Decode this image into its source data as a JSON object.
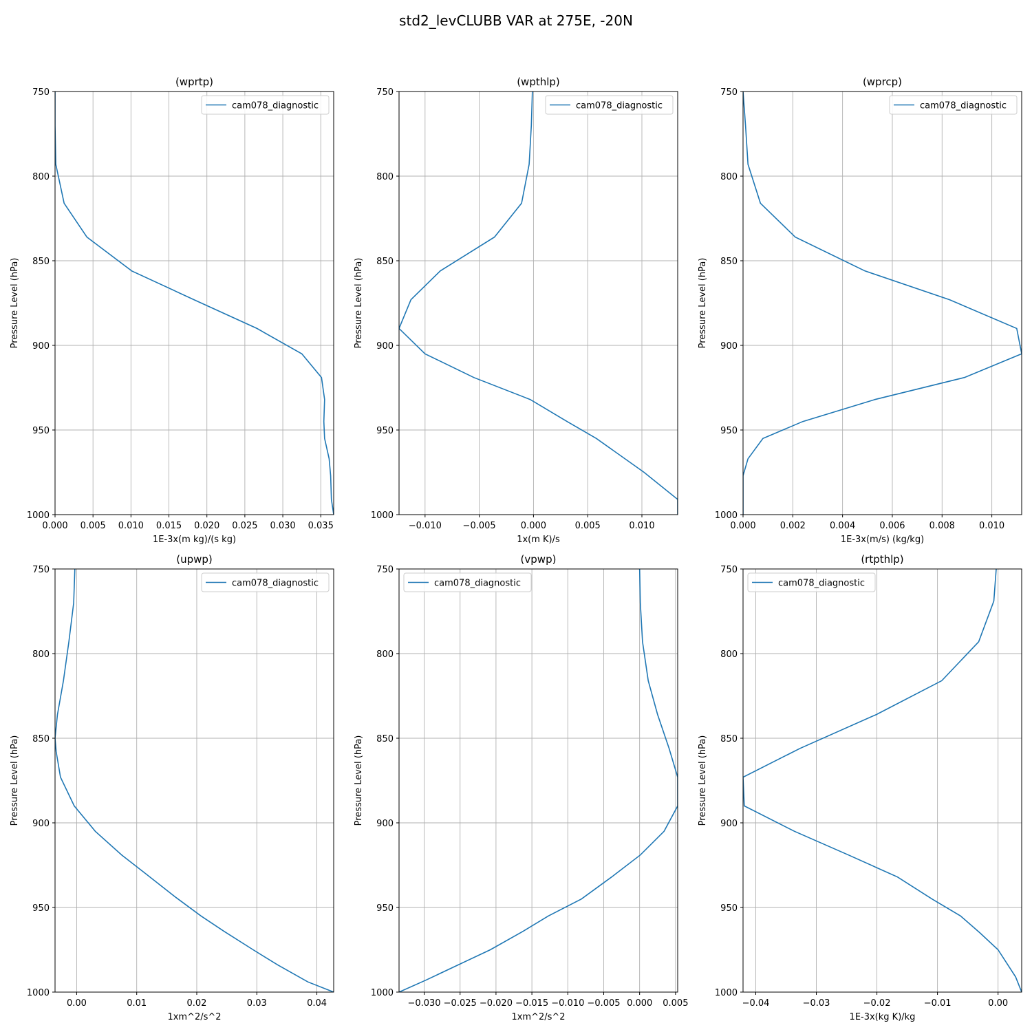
{
  "figure": {
    "title": "std2_levCLUBB VAR at 275E, -20N"
  },
  "chart_data": [
    {
      "type": "line",
      "title": "(wprtp)",
      "xlabel": "1E-3x(m kg)/(s kg)",
      "ylabel": "Pressure Level (hPa)",
      "xlim": [
        0,
        0.0367
      ],
      "ylim": [
        1000,
        750
      ],
      "y_inverted": true,
      "xticks": [
        0,
        0.005,
        0.01,
        0.015,
        0.02,
        0.025,
        0.03,
        0.035
      ],
      "xtick_labels": [
        "0.000",
        "0.005",
        "0.010",
        "0.015",
        "0.020",
        "0.025",
        "0.030",
        "0.035"
      ],
      "yticks": [
        750,
        800,
        850,
        900,
        950,
        1000
      ],
      "ytick_labels": [
        "750",
        "800",
        "850",
        "900",
        "950",
        "1000"
      ],
      "grid": true,
      "legend_position": "upper right",
      "series": [
        {
          "name": "cam078_diagnostic",
          "color": "#1f77b4",
          "x": [
            0.0,
            0.0,
            0.0001,
            0.0012,
            0.0042,
            0.0101,
            0.0183,
            0.0266,
            0.0325,
            0.0351,
            0.0355,
            0.0354,
            0.0355,
            0.0361,
            0.0363,
            0.0364,
            0.0367
          ],
          "y": [
            750,
            770,
            793,
            816,
            836,
            856,
            873,
            890,
            905,
            919,
            932,
            945,
            955,
            967,
            977,
            991,
            1000
          ]
        }
      ]
    },
    {
      "type": "line",
      "title": "(wpthlp)",
      "xlabel": "1x(m K)/s",
      "ylabel": "Pressure Level (hPa)",
      "xlim": [
        -0.0124,
        0.0133
      ],
      "ylim": [
        1000,
        750
      ],
      "y_inverted": true,
      "xticks": [
        -0.01,
        -0.005,
        0,
        0.005,
        0.01
      ],
      "xtick_labels": [
        "−0.010",
        "−0.005",
        "0.000",
        "0.005",
        "0.010"
      ],
      "yticks": [
        750,
        800,
        850,
        900,
        950,
        1000
      ],
      "ytick_labels": [
        "750",
        "800",
        "850",
        "900",
        "950",
        "1000"
      ],
      "grid": true,
      "legend_position": "upper right",
      "series": [
        {
          "name": "cam078_diagnostic",
          "color": "#1f77b4",
          "x": [
            -0.0001,
            -0.0002,
            -0.0004,
            -0.0011,
            -0.0036,
            -0.0086,
            -0.0113,
            -0.0124,
            -0.01,
            -0.0055,
            -0.0003,
            0.0031,
            0.0058,
            0.0102,
            0.0133,
            0.0133
          ],
          "y": [
            750,
            770,
            793,
            816,
            836,
            856,
            873,
            890,
            905,
            919,
            932,
            945,
            955,
            975,
            991,
            1000
          ]
        }
      ]
    },
    {
      "type": "line",
      "title": "(wprcp)",
      "xlabel": "1E-3x(m/s) (kg/kg)",
      "ylabel": "Pressure Level (hPa)",
      "xlim": [
        0,
        0.0112
      ],
      "ylim": [
        1000,
        750
      ],
      "y_inverted": true,
      "xticks": [
        0,
        0.002,
        0.004,
        0.006,
        0.008,
        0.01
      ],
      "xtick_labels": [
        "0.000",
        "0.002",
        "0.004",
        "0.006",
        "0.008",
        "0.010"
      ],
      "yticks": [
        750,
        800,
        850,
        900,
        950,
        1000
      ],
      "ytick_labels": [
        "750",
        "800",
        "850",
        "900",
        "950",
        "1000"
      ],
      "grid": true,
      "legend_position": "upper right",
      "series": [
        {
          "name": "cam078_diagnostic",
          "color": "#1f77b4",
          "x": [
            0.0,
            0.0001,
            0.0002,
            0.0007,
            0.0021,
            0.0049,
            0.0083,
            0.011,
            0.0112,
            0.0089,
            0.0053,
            0.0024,
            0.0008,
            0.0002,
            0.0,
            0.0
          ],
          "y": [
            750,
            770,
            793,
            816,
            836,
            856,
            873,
            890,
            905,
            919,
            932,
            945,
            955,
            967,
            977,
            1000
          ]
        }
      ]
    },
    {
      "type": "line",
      "title": "(upwp)",
      "xlabel": "1xm^2/s^2",
      "ylabel": "Pressure Level (hPa)",
      "xlim": [
        -0.0036,
        0.0428
      ],
      "ylim": [
        1000,
        750
      ],
      "y_inverted": true,
      "xticks": [
        0,
        0.01,
        0.02,
        0.03,
        0.04
      ],
      "xtick_labels": [
        "0.00",
        "0.01",
        "0.02",
        "0.03",
        "0.04"
      ],
      "yticks": [
        750,
        800,
        850,
        900,
        950,
        1000
      ],
      "ytick_labels": [
        "750",
        "800",
        "850",
        "900",
        "950",
        "1000"
      ],
      "grid": true,
      "legend_position": "upper right",
      "series": [
        {
          "name": "cam078_diagnostic",
          "color": "#1f77b4",
          "x": [
            -0.0003,
            -0.0005,
            -0.0013,
            -0.0022,
            -0.0032,
            -0.0036,
            -0.0034,
            -0.0027,
            -0.0004,
            0.0031,
            0.0075,
            0.0122,
            0.0165,
            0.0207,
            0.0245,
            0.0294,
            0.0335,
            0.0385,
            0.0428
          ],
          "y": [
            750,
            770,
            793,
            816,
            836,
            850,
            858,
            873,
            890,
            905,
            919,
            932,
            944,
            955,
            964,
            975,
            984,
            994,
            1000
          ]
        }
      ]
    },
    {
      "type": "line",
      "title": "(vpwp)",
      "xlabel": "1xm^2/s^2",
      "ylabel": "Pressure Level (hPa)",
      "xlim": [
        -0.0335,
        0.0053
      ],
      "ylim": [
        1000,
        750
      ],
      "y_inverted": true,
      "xticks": [
        -0.03,
        -0.025,
        -0.02,
        -0.015,
        -0.01,
        -0.005,
        0,
        0.005
      ],
      "xtick_labels": [
        "−0.030",
        "−0.025",
        "−0.020",
        "−0.015",
        "−0.010",
        "−0.005",
        "0.000",
        "0.005"
      ],
      "yticks": [
        750,
        800,
        850,
        900,
        950,
        1000
      ],
      "ytick_labels": [
        "750",
        "800",
        "850",
        "900",
        "950",
        "1000"
      ],
      "grid": true,
      "legend_position": "upper left",
      "series": [
        {
          "name": "cam078_diagnostic",
          "color": "#1f77b4",
          "x": [
            0.0,
            0.0001,
            0.0004,
            0.0012,
            0.0025,
            0.0041,
            0.0053,
            0.0053,
            0.0034,
            0.0001,
            -0.0039,
            -0.0081,
            -0.0127,
            -0.0162,
            -0.0208,
            -0.0253,
            -0.0298,
            -0.0335
          ],
          "y": [
            750,
            770,
            793,
            816,
            836,
            856,
            873,
            890,
            905,
            919,
            932,
            945,
            955,
            964,
            975,
            984,
            993,
            1000
          ]
        }
      ]
    },
    {
      "type": "line",
      "title": "(rtpthlp)",
      "xlabel": "1E-3x(kg K)/kg",
      "ylabel": "Pressure Level (hPa)",
      "xlim": [
        -0.0421,
        0.0039
      ],
      "ylim": [
        1000,
        750
      ],
      "y_inverted": true,
      "xticks": [
        -0.04,
        -0.03,
        -0.02,
        -0.01,
        0
      ],
      "xtick_labels": [
        "−0.04",
        "−0.03",
        "−0.02",
        "−0.01",
        "0.00"
      ],
      "yticks": [
        750,
        800,
        850,
        900,
        950,
        1000
      ],
      "ytick_labels": [
        "750",
        "800",
        "850",
        "900",
        "950",
        "1000"
      ],
      "grid": true,
      "legend_position": "upper left",
      "series": [
        {
          "name": "cam078_diagnostic",
          "color": "#1f77b4",
          "x": [
            -0.0003,
            -0.0007,
            -0.0032,
            -0.0093,
            -0.0201,
            -0.0327,
            -0.0421,
            -0.0419,
            -0.0336,
            -0.0247,
            -0.0166,
            -0.0109,
            -0.0062,
            -0.003,
            -0.0,
            0.0029,
            0.0039
          ],
          "y": [
            750,
            769,
            793,
            816,
            836,
            856,
            873,
            890,
            905,
            919,
            932,
            945,
            955,
            965,
            975,
            991,
            1000
          ]
        }
      ]
    }
  ]
}
